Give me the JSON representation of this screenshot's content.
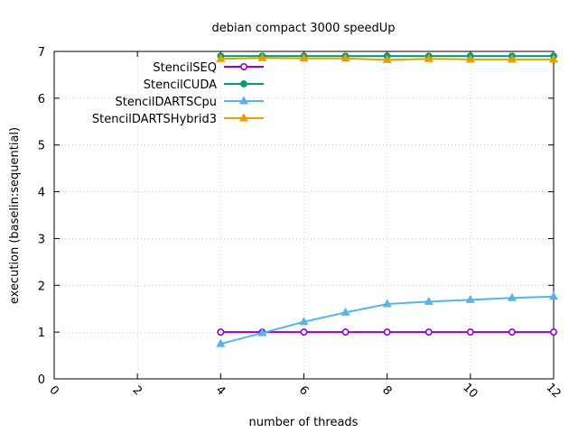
{
  "chart_data": {
    "type": "line",
    "title": "debian compact 3000 speedUp",
    "xlabel": "number of threads",
    "ylabel": "execution (baselin:sequential)",
    "xlim": [
      0,
      12
    ],
    "ylim": [
      0,
      7
    ],
    "xticks": [
      0,
      2,
      4,
      6,
      8,
      10,
      12
    ],
    "yticks": [
      0,
      1,
      2,
      3,
      4,
      5,
      6,
      7
    ],
    "grid": true,
    "legend_position": "top-left",
    "x": [
      4,
      5,
      6,
      7,
      8,
      9,
      10,
      11,
      12
    ],
    "series": [
      {
        "name": "StencilSEQ",
        "color": "#9400d3",
        "marker": "open-circle",
        "values": [
          1,
          1,
          1,
          1,
          1,
          1,
          1,
          1,
          1
        ]
      },
      {
        "name": "StencilCUDA",
        "color": "#009e73",
        "marker": "filled-circle",
        "values": [
          6.9,
          6.9,
          6.9,
          6.9,
          6.9,
          6.9,
          6.9,
          6.9,
          6.9
        ]
      },
      {
        "name": "StencilDARTSCpu",
        "color": "#56b4e9",
        "marker": "filled-triangle",
        "values": [
          0.75,
          0.98,
          1.22,
          1.42,
          1.6,
          1.65,
          1.69,
          1.73,
          1.76
        ]
      },
      {
        "name": "StencilDARTSHybrid3",
        "color": "#e69f00",
        "marker": "filled-triangle",
        "values": [
          6.84,
          6.86,
          6.85,
          6.85,
          6.82,
          6.84,
          6.83,
          6.83,
          6.83
        ]
      }
    ]
  }
}
